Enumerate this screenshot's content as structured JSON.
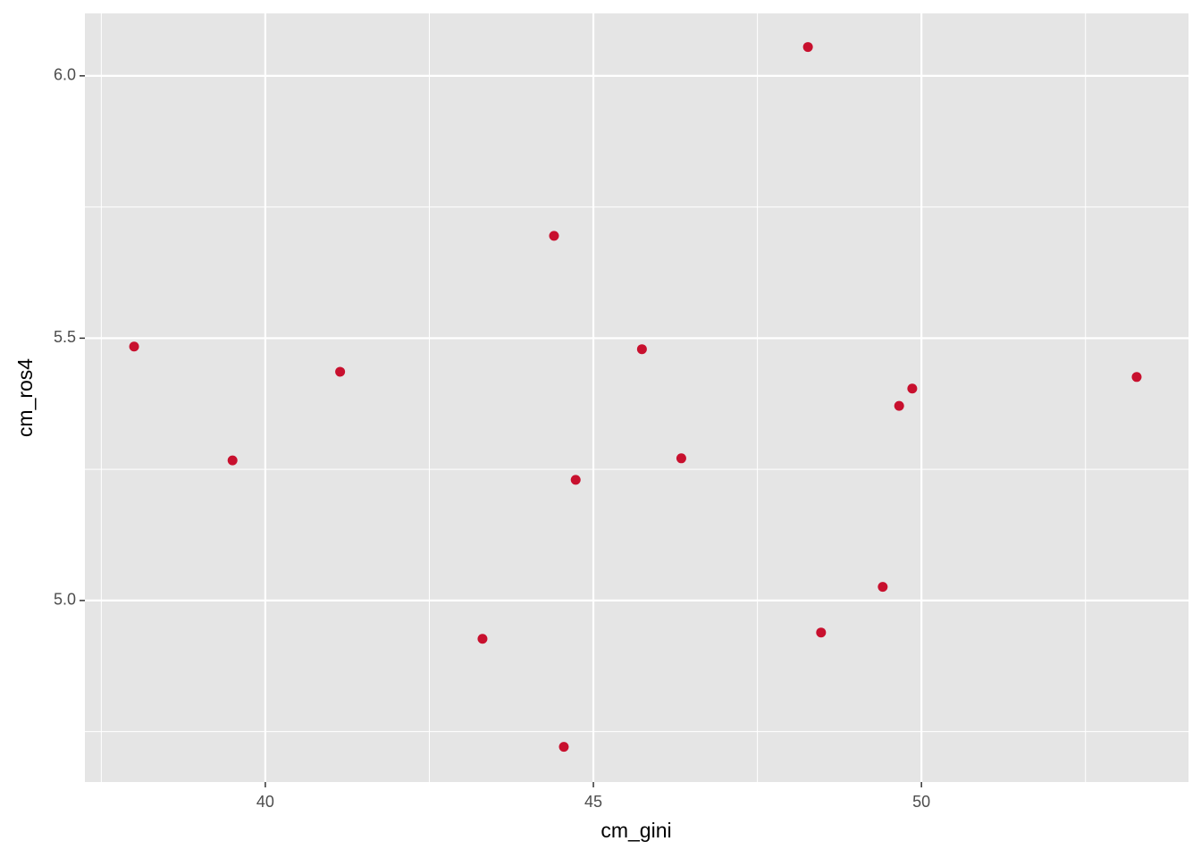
{
  "chart_data": {
    "type": "scatter",
    "x_label": "cm_gini",
    "y_label": "cm_ros4",
    "x": [
      38.0,
      39.5,
      41.14,
      43.31,
      44.4,
      44.55,
      44.73,
      45.74,
      46.34,
      48.27,
      48.47,
      49.41,
      49.66,
      49.86,
      53.28
    ],
    "values": [
      5.484,
      5.267,
      5.436,
      4.927,
      5.695,
      4.721,
      5.23,
      5.479,
      5.271,
      6.055,
      4.939,
      5.026,
      5.371,
      5.404,
      5.426
    ],
    "color": "#c8102e",
    "xlim": [
      37.25,
      54.07
    ],
    "ylim": [
      4.654,
      6.119
    ],
    "xticks": [
      40,
      45,
      50
    ],
    "yticks": [
      {
        "value": 5,
        "label": "5.0"
      },
      {
        "value": 5.5,
        "label": "5.5"
      },
      {
        "value": 6,
        "label": "6.0"
      }
    ],
    "x_minor_breaks": [
      37.5,
      42.5,
      47.5,
      52.5
    ],
    "y_minor_breaks": [
      4.75,
      5.25,
      5.75
    ],
    "grid": true
  }
}
